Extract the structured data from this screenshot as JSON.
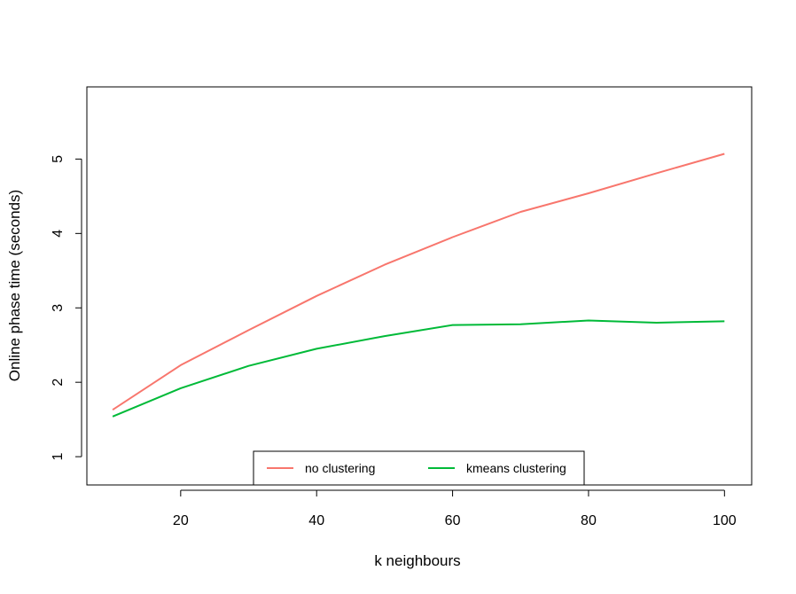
{
  "chart_data": {
    "type": "line",
    "title": "",
    "xlabel": "k neighbours",
    "ylabel": "Online phase time (seconds)",
    "xlim": [
      6.2,
      104
    ],
    "ylim": [
      0.62,
      5.97
    ],
    "xticks": [
      20,
      40,
      60,
      80,
      100
    ],
    "yticks": [
      1,
      2,
      3,
      4,
      5
    ],
    "grid": false,
    "legend_position": "bottom-center",
    "x": [
      10,
      20,
      30,
      40,
      50,
      60,
      70,
      80,
      90,
      100
    ],
    "series": [
      {
        "name": "no clustering",
        "color": "#F8766D",
        "values": [
          1.63,
          2.23,
          2.7,
          3.16,
          3.58,
          3.95,
          4.29,
          4.54,
          4.81,
          5.07
        ]
      },
      {
        "name": "kmeans clustering",
        "color": "#00BA38",
        "values": [
          1.54,
          1.92,
          2.22,
          2.45,
          2.62,
          2.77,
          2.78,
          2.83,
          2.8,
          2.82
        ]
      }
    ]
  }
}
